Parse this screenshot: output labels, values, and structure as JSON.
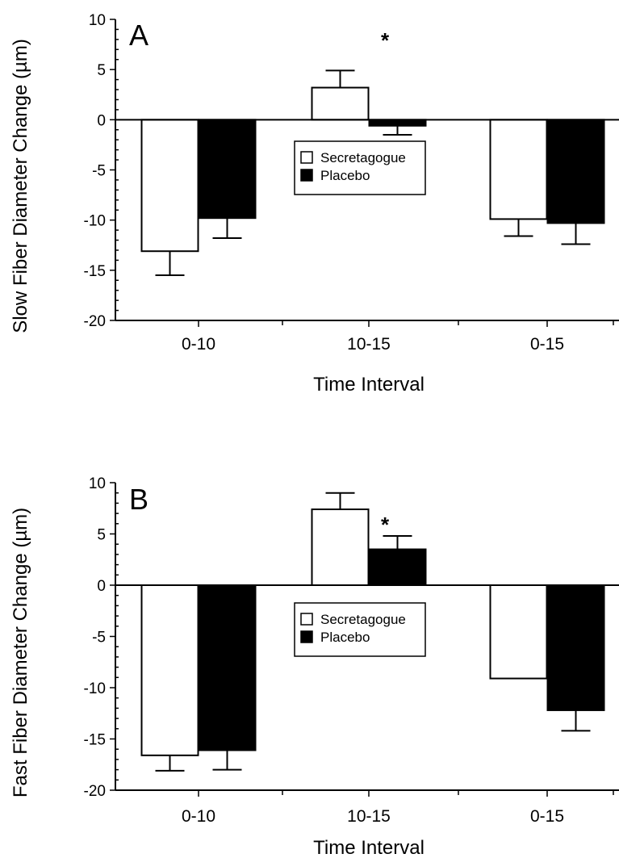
{
  "chart_data": [
    {
      "type": "bar",
      "panel_label": "A",
      "ylabel": "Slow Fiber Diameter Change (µm)",
      "xlabel": "Time Interval",
      "ylim": [
        -20,
        10
      ],
      "yticks": [
        10,
        5,
        0,
        -5,
        -10,
        -15,
        -20
      ],
      "categories": [
        "0-10",
        "10-15",
        "0-15"
      ],
      "series": [
        {
          "name": "Secretagogue",
          "color": "#ffffff",
          "values": [
            -13.1,
            3.2,
            -9.9
          ],
          "error": [
            2.4,
            1.7,
            1.7
          ]
        },
        {
          "name": "Placebo",
          "color": "#000000",
          "values": [
            -9.8,
            -0.6,
            -10.3
          ],
          "error": [
            2.0,
            0.9,
            2.1
          ]
        }
      ],
      "annotations": [
        {
          "text": "*",
          "category": "10-15"
        }
      ],
      "legend": "center"
    },
    {
      "type": "bar",
      "panel_label": "B",
      "ylabel": "Fast Fiber Diameter Change (µm)",
      "xlabel": "Time Interval",
      "ylim": [
        -20,
        10
      ],
      "yticks": [
        10,
        5,
        0,
        -5,
        -10,
        -15,
        -20
      ],
      "categories": [
        "0-10",
        "10-15",
        "0-15"
      ],
      "series": [
        {
          "name": "Secretagogue",
          "color": "#ffffff",
          "values": [
            -16.6,
            7.4,
            -9.1
          ],
          "error": [
            1.5,
            1.6,
            0
          ]
        },
        {
          "name": "Placebo",
          "color": "#000000",
          "values": [
            -16.1,
            3.5,
            -12.2
          ],
          "error": [
            1.9,
            1.3,
            2.0
          ]
        }
      ],
      "annotations": [
        {
          "text": "*",
          "category": "10-15"
        }
      ],
      "legend": "center"
    }
  ]
}
